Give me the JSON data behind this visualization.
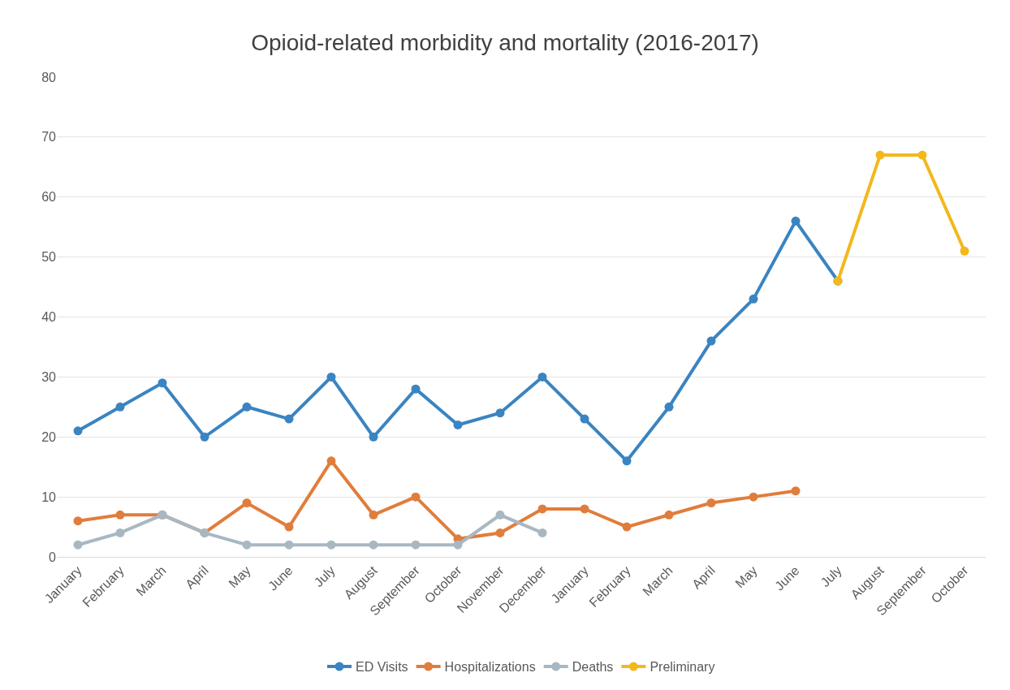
{
  "chart_data": {
    "type": "line",
    "title": "Opioid-related morbidity and mortality (2016-2017)",
    "categories": [
      "January",
      "February",
      "March",
      "April",
      "May",
      "June",
      "July",
      "August",
      "September",
      "October",
      "November",
      "December",
      "January",
      "February",
      "March",
      "April",
      "May",
      "June",
      "July",
      "August",
      "September",
      "October"
    ],
    "series": [
      {
        "name": "ED Visits",
        "color": "#3a84c1",
        "values": [
          21,
          25,
          29,
          20,
          25,
          23,
          30,
          20,
          28,
          22,
          24,
          30,
          23,
          16,
          25,
          36,
          43,
          56,
          46,
          null,
          null,
          null
        ]
      },
      {
        "name": "Hospitalizations",
        "color": "#e07d3c",
        "values": [
          6,
          7,
          7,
          4,
          9,
          5,
          16,
          7,
          10,
          3,
          4,
          8,
          8,
          5,
          7,
          9,
          10,
          11,
          null,
          null,
          null,
          null
        ]
      },
      {
        "name": "Deaths",
        "color": "#a8b8c2",
        "values": [
          2,
          4,
          7,
          4,
          2,
          2,
          2,
          2,
          2,
          2,
          7,
          4,
          null,
          null,
          null,
          null,
          null,
          null,
          null,
          null,
          null,
          null
        ]
      },
      {
        "name": "Preliminary",
        "color": "#f2b81c",
        "values": [
          null,
          null,
          null,
          null,
          null,
          null,
          null,
          null,
          null,
          null,
          null,
          null,
          null,
          null,
          null,
          null,
          null,
          null,
          46,
          67,
          67,
          51
        ]
      }
    ],
    "ylim": [
      0,
      80
    ],
    "yticks": [
      0,
      10,
      20,
      30,
      40,
      50,
      60,
      70,
      80
    ],
    "grid": "y",
    "legend": "bottom",
    "marker": "circle",
    "line_style": "solid"
  }
}
